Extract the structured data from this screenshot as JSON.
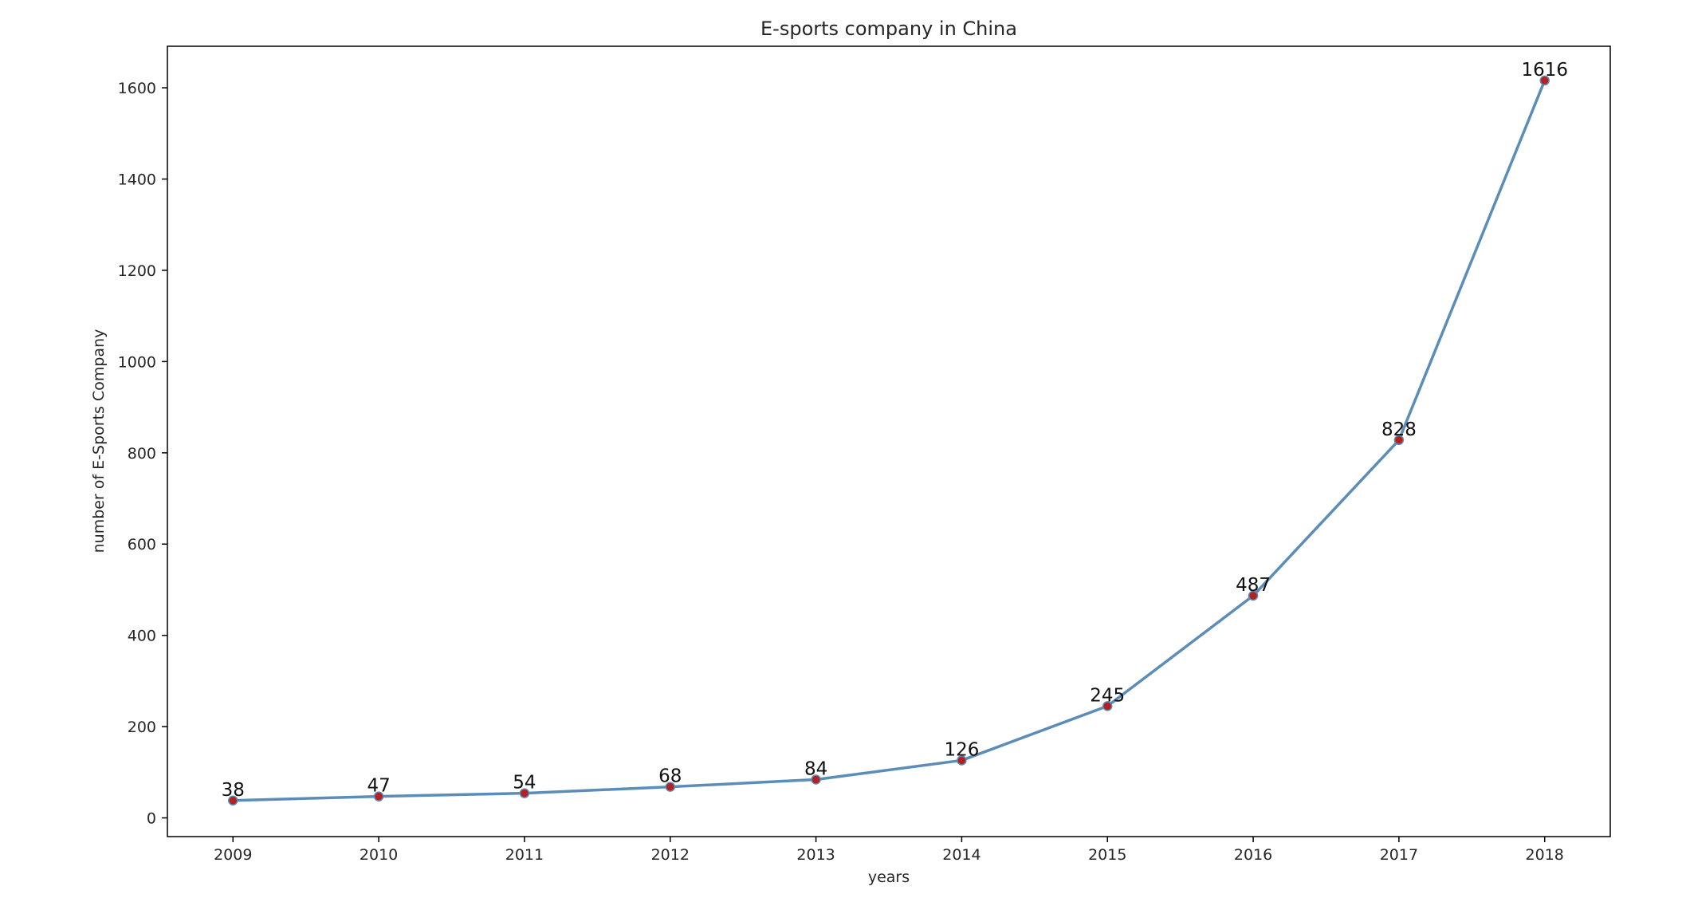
{
  "chart_data": {
    "type": "line",
    "title": "E-sports company in China",
    "xlabel": "years",
    "ylabel": "number of E-Sports Company",
    "x": [
      2009,
      2010,
      2011,
      2012,
      2013,
      2014,
      2015,
      2016,
      2017,
      2018
    ],
    "series": [
      {
        "values": [
          38,
          47,
          54,
          68,
          84,
          126,
          245,
          487,
          828,
          1616
        ],
        "line_color": "#5b8db8",
        "marker_color": "#b22222"
      }
    ],
    "data_labels": [
      "38",
      "47",
      "54",
      "68",
      "84",
      "126",
      "245",
      "487",
      "828",
      "1616"
    ],
    "x_ticks": [
      "2009",
      "2010",
      "2011",
      "2012",
      "2013",
      "2014",
      "2015",
      "2016",
      "2017",
      "2018"
    ],
    "y_ticks": [
      "0",
      "200",
      "400",
      "600",
      "800",
      "1000",
      "1200",
      "1400",
      "1600"
    ],
    "y_tick_values": [
      0,
      200,
      400,
      600,
      800,
      1000,
      1200,
      1400,
      1600
    ],
    "xlim": [
      2008.55,
      2018.45
    ],
    "ylim": [
      -41,
      1691
    ],
    "grid": false,
    "legend": "none"
  }
}
